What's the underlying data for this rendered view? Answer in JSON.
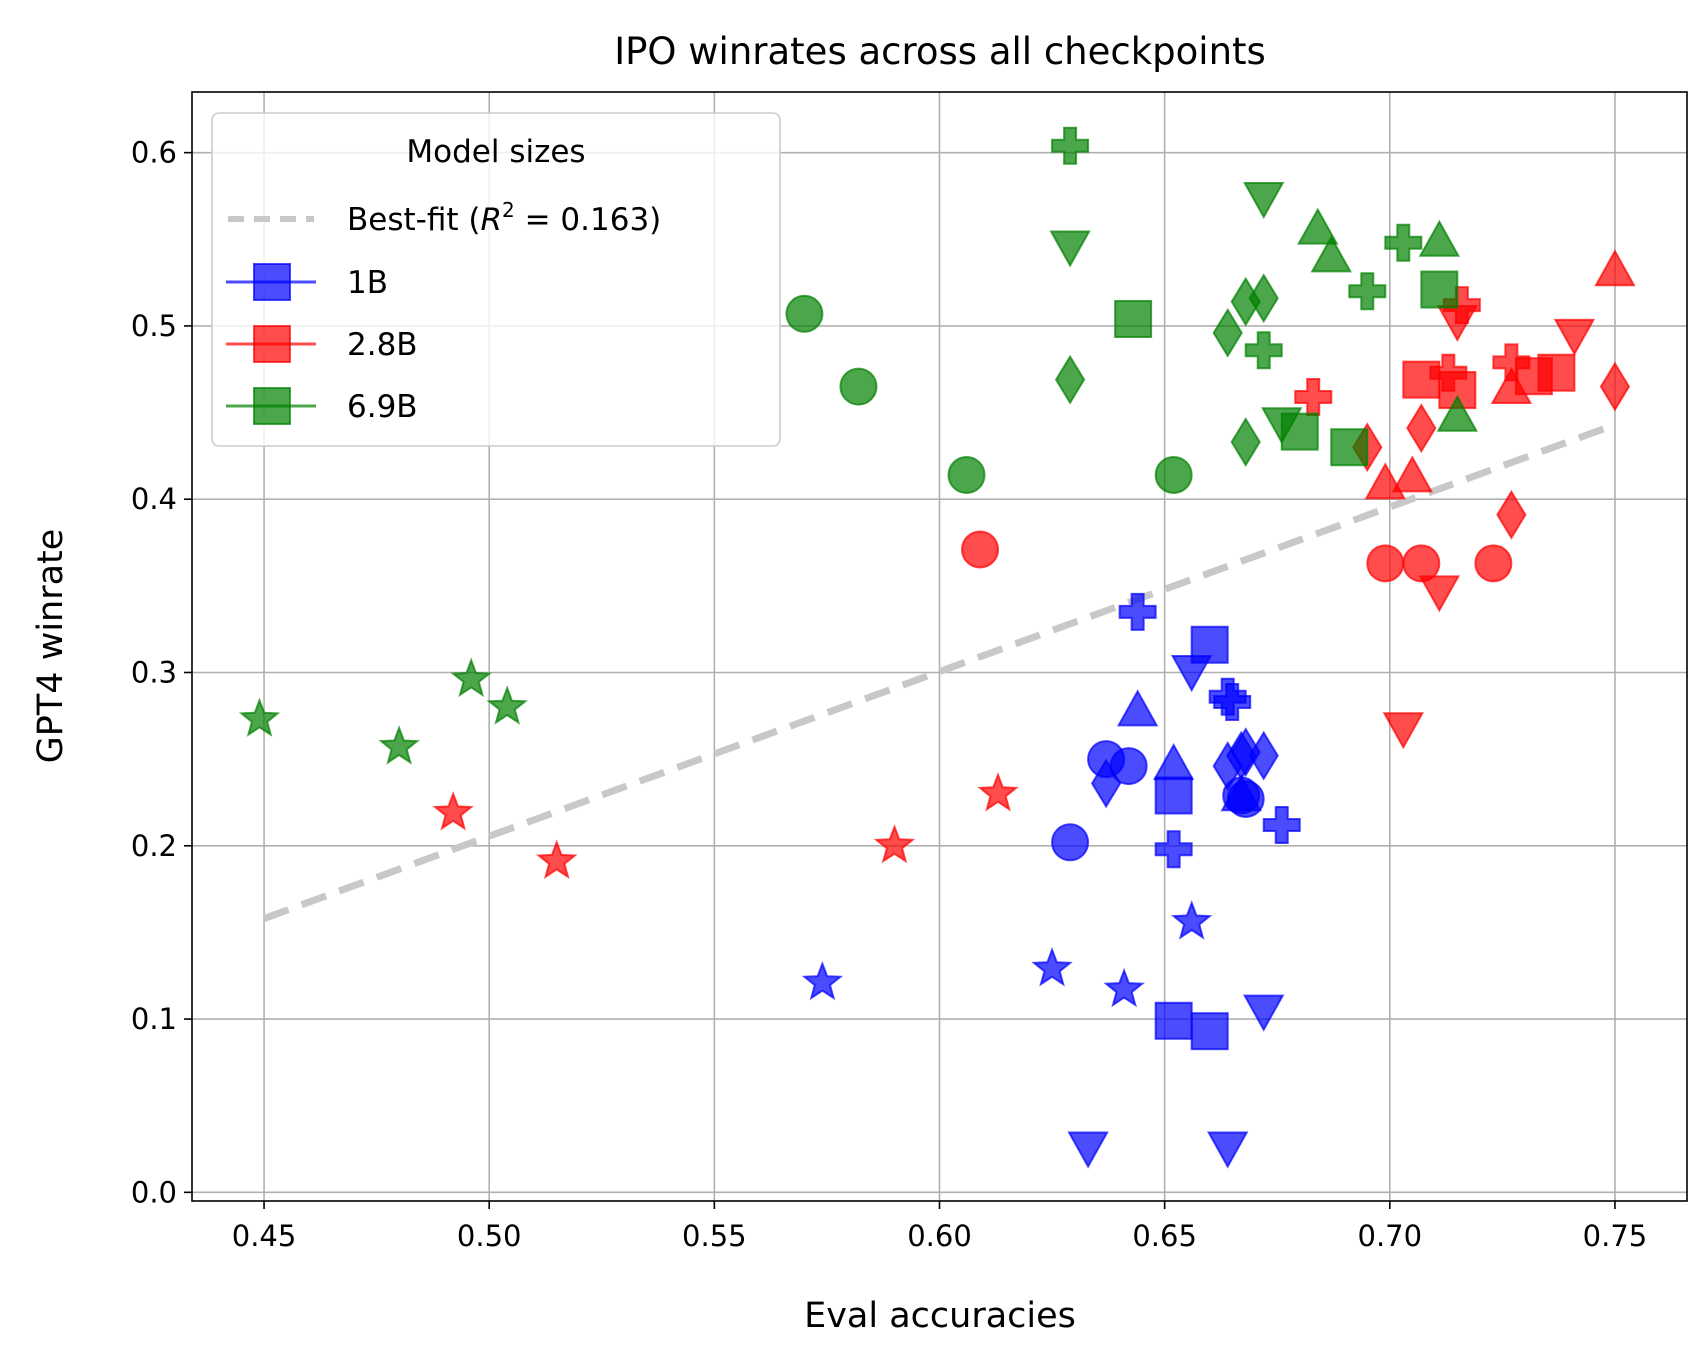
{
  "chart_data": {
    "type": "scatter",
    "title": "IPO winrates across all checkpoints",
    "xlabel": "Eval accuracies",
    "ylabel": "GPT4 winrate",
    "xlim": [
      0.434,
      0.766
    ],
    "ylim": [
      -0.005,
      0.635
    ],
    "xticks": [
      0.45,
      0.5,
      0.55,
      0.6,
      0.65,
      0.7,
      0.75
    ],
    "yticks": [
      0.0,
      0.1,
      0.2,
      0.3,
      0.4,
      0.5,
      0.6
    ],
    "xtick_labels": [
      "0.45",
      "0.50",
      "0.55",
      "0.60",
      "0.65",
      "0.70",
      "0.75"
    ],
    "ytick_labels": [
      "0.0",
      "0.1",
      "0.2",
      "0.3",
      "0.4",
      "0.5",
      "0.6"
    ],
    "grid": true,
    "colors": {
      "1B": "#0000ff",
      "2.8B": "#ff0000",
      "6.9B": "#008000",
      "fit": "#c8c8c8"
    },
    "legend": {
      "title": "Model sizes",
      "placement": "top-left",
      "fit_label_prefix": "Best-fit (",
      "fit_label_r": "R",
      "fit_label_sup": "2",
      "fit_label_eq": " = 0.163)",
      "entries": [
        "1B",
        "2.8B",
        "6.9B"
      ]
    },
    "best_fit": {
      "x": [
        0.45,
        0.75
      ],
      "y": [
        0.158,
        0.443
      ],
      "r2": 0.163
    },
    "series": [
      {
        "name": "1B",
        "points": [
          {
            "x": 0.574,
            "y": 0.121,
            "m": "star"
          },
          {
            "x": 0.625,
            "y": 0.129,
            "m": "star"
          },
          {
            "x": 0.641,
            "y": 0.117,
            "m": "star"
          },
          {
            "x": 0.656,
            "y": 0.156,
            "m": "star"
          },
          {
            "x": 0.629,
            "y": 0.202,
            "m": "circle"
          },
          {
            "x": 0.637,
            "y": 0.25,
            "m": "circle"
          },
          {
            "x": 0.642,
            "y": 0.246,
            "m": "circle"
          },
          {
            "x": 0.667,
            "y": 0.229,
            "m": "circle"
          },
          {
            "x": 0.668,
            "y": 0.227,
            "m": "circle"
          },
          {
            "x": 0.644,
            "y": 0.335,
            "m": "plus"
          },
          {
            "x": 0.664,
            "y": 0.286,
            "m": "plus"
          },
          {
            "x": 0.665,
            "y": 0.283,
            "m": "plus"
          },
          {
            "x": 0.652,
            "y": 0.198,
            "m": "plus"
          },
          {
            "x": 0.676,
            "y": 0.212,
            "m": "plus"
          },
          {
            "x": 0.66,
            "y": 0.316,
            "m": "square"
          },
          {
            "x": 0.652,
            "y": 0.229,
            "m": "square"
          },
          {
            "x": 0.652,
            "y": 0.099,
            "m": "square"
          },
          {
            "x": 0.66,
            "y": 0.093,
            "m": "square"
          },
          {
            "x": 0.644,
            "y": 0.277,
            "m": "triangle-up"
          },
          {
            "x": 0.652,
            "y": 0.246,
            "m": "triangle-up"
          },
          {
            "x": 0.667,
            "y": 0.228,
            "m": "triangle-up"
          },
          {
            "x": 0.656,
            "y": 0.302,
            "m": "triangle-down"
          },
          {
            "x": 0.633,
            "y": 0.027,
            "m": "triangle-down"
          },
          {
            "x": 0.664,
            "y": 0.027,
            "m": "triangle-down"
          },
          {
            "x": 0.672,
            "y": 0.106,
            "m": "triangle-down"
          },
          {
            "x": 0.637,
            "y": 0.236,
            "m": "diamond"
          },
          {
            "x": 0.664,
            "y": 0.246,
            "m": "diamond"
          },
          {
            "x": 0.667,
            "y": 0.252,
            "m": "diamond"
          },
          {
            "x": 0.668,
            "y": 0.254,
            "m": "diamond"
          },
          {
            "x": 0.672,
            "y": 0.252,
            "m": "diamond"
          }
        ]
      },
      {
        "name": "2.8B",
        "points": [
          {
            "x": 0.492,
            "y": 0.219,
            "m": "star"
          },
          {
            "x": 0.515,
            "y": 0.191,
            "m": "star"
          },
          {
            "x": 0.59,
            "y": 0.2,
            "m": "star"
          },
          {
            "x": 0.613,
            "y": 0.23,
            "m": "star"
          },
          {
            "x": 0.609,
            "y": 0.371,
            "m": "circle"
          },
          {
            "x": 0.699,
            "y": 0.363,
            "m": "circle"
          },
          {
            "x": 0.707,
            "y": 0.363,
            "m": "circle"
          },
          {
            "x": 0.723,
            "y": 0.363,
            "m": "circle"
          },
          {
            "x": 0.683,
            "y": 0.459,
            "m": "plus"
          },
          {
            "x": 0.713,
            "y": 0.473,
            "m": "plus"
          },
          {
            "x": 0.716,
            "y": 0.512,
            "m": "plus"
          },
          {
            "x": 0.727,
            "y": 0.479,
            "m": "plus"
          },
          {
            "x": 0.707,
            "y": 0.469,
            "m": "square"
          },
          {
            "x": 0.715,
            "y": 0.463,
            "m": "square"
          },
          {
            "x": 0.732,
            "y": 0.471,
            "m": "square"
          },
          {
            "x": 0.737,
            "y": 0.473,
            "m": "square"
          },
          {
            "x": 0.699,
            "y": 0.408,
            "m": "triangle-up"
          },
          {
            "x": 0.705,
            "y": 0.412,
            "m": "triangle-up"
          },
          {
            "x": 0.727,
            "y": 0.463,
            "m": "triangle-up"
          },
          {
            "x": 0.75,
            "y": 0.531,
            "m": "triangle-up"
          },
          {
            "x": 0.703,
            "y": 0.269,
            "m": "triangle-down"
          },
          {
            "x": 0.711,
            "y": 0.348,
            "m": "triangle-down"
          },
          {
            "x": 0.715,
            "y": 0.504,
            "m": "triangle-down"
          },
          {
            "x": 0.741,
            "y": 0.496,
            "m": "triangle-down"
          },
          {
            "x": 0.695,
            "y": 0.43,
            "m": "diamond"
          },
          {
            "x": 0.707,
            "y": 0.441,
            "m": "diamond"
          },
          {
            "x": 0.727,
            "y": 0.391,
            "m": "diamond"
          },
          {
            "x": 0.75,
            "y": 0.465,
            "m": "diamond"
          }
        ]
      },
      {
        "name": "6.9B",
        "points": [
          {
            "x": 0.449,
            "y": 0.273,
            "m": "star"
          },
          {
            "x": 0.48,
            "y": 0.257,
            "m": "star"
          },
          {
            "x": 0.496,
            "y": 0.296,
            "m": "star"
          },
          {
            "x": 0.504,
            "y": 0.28,
            "m": "star"
          },
          {
            "x": 0.57,
            "y": 0.507,
            "m": "circle"
          },
          {
            "x": 0.582,
            "y": 0.465,
            "m": "circle"
          },
          {
            "x": 0.606,
            "y": 0.414,
            "m": "circle"
          },
          {
            "x": 0.652,
            "y": 0.414,
            "m": "circle"
          },
          {
            "x": 0.629,
            "y": 0.604,
            "m": "plus"
          },
          {
            "x": 0.672,
            "y": 0.486,
            "m": "plus"
          },
          {
            "x": 0.695,
            "y": 0.52,
            "m": "plus"
          },
          {
            "x": 0.703,
            "y": 0.548,
            "m": "plus"
          },
          {
            "x": 0.643,
            "y": 0.504,
            "m": "square"
          },
          {
            "x": 0.68,
            "y": 0.439,
            "m": "square"
          },
          {
            "x": 0.691,
            "y": 0.43,
            "m": "square"
          },
          {
            "x": 0.711,
            "y": 0.521,
            "m": "square"
          },
          {
            "x": 0.684,
            "y": 0.555,
            "m": "triangle-up"
          },
          {
            "x": 0.687,
            "y": 0.539,
            "m": "triangle-up"
          },
          {
            "x": 0.711,
            "y": 0.548,
            "m": "triangle-up"
          },
          {
            "x": 0.715,
            "y": 0.447,
            "m": "triangle-up"
          },
          {
            "x": 0.629,
            "y": 0.547,
            "m": "triangle-down"
          },
          {
            "x": 0.672,
            "y": 0.575,
            "m": "triangle-down"
          },
          {
            "x": 0.676,
            "y": 0.445,
            "m": "triangle-down"
          },
          {
            "x": 0.629,
            "y": 0.469,
            "m": "diamond"
          },
          {
            "x": 0.664,
            "y": 0.496,
            "m": "diamond"
          },
          {
            "x": 0.668,
            "y": 0.433,
            "m": "diamond"
          },
          {
            "x": 0.668,
            "y": 0.514,
            "m": "diamond"
          },
          {
            "x": 0.672,
            "y": 0.516,
            "m": "diamond"
          }
        ]
      }
    ]
  }
}
